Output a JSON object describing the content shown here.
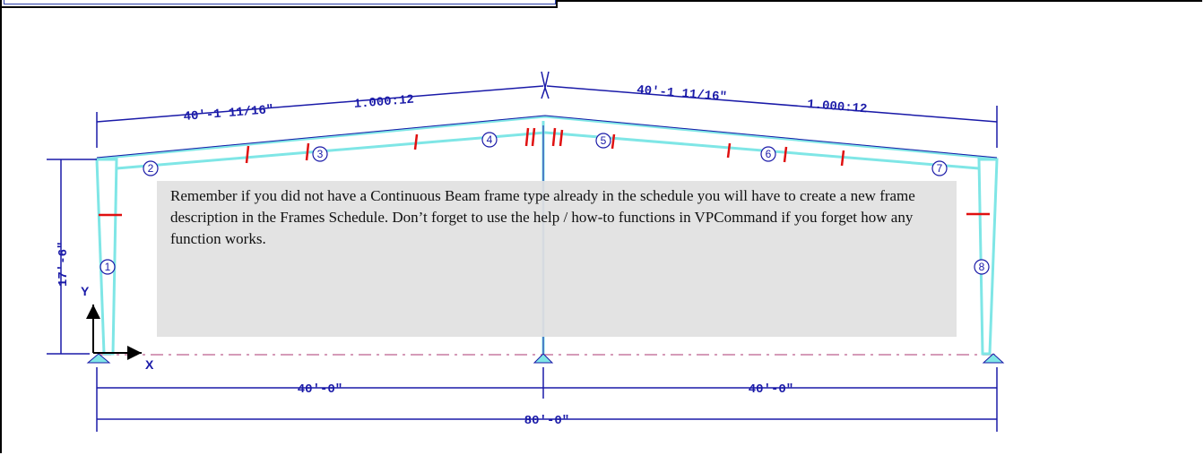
{
  "frame": {
    "dimensions": {
      "left_rafter_length": "40'-1 11/16\"",
      "right_rafter_length": "40'-1 11/16\"",
      "left_slope": "1.000:12",
      "right_slope": "1.000:12",
      "eave_height": "17'-6\"",
      "left_bay": "40'-0\"",
      "right_bay": "40'-0\"",
      "total_width": "80'-0\""
    },
    "axis_labels": {
      "y": "Y",
      "x": "X"
    },
    "member_numbers": [
      "1",
      "2",
      "3",
      "4",
      "5",
      "6",
      "7",
      "8"
    ]
  },
  "note": {
    "text": "Remember if you did not have a Continuous Beam frame type already in the schedule you will have to create a new frame description in the Frames Schedule. Don’t forget to use the help / how-to functions in VPCommand if you forget how any function works."
  },
  "colors": {
    "dimension": "#1a1aa8",
    "member": "#7fe6e6",
    "stiffener": "#e01010",
    "grid_line": "#c77aa0"
  }
}
